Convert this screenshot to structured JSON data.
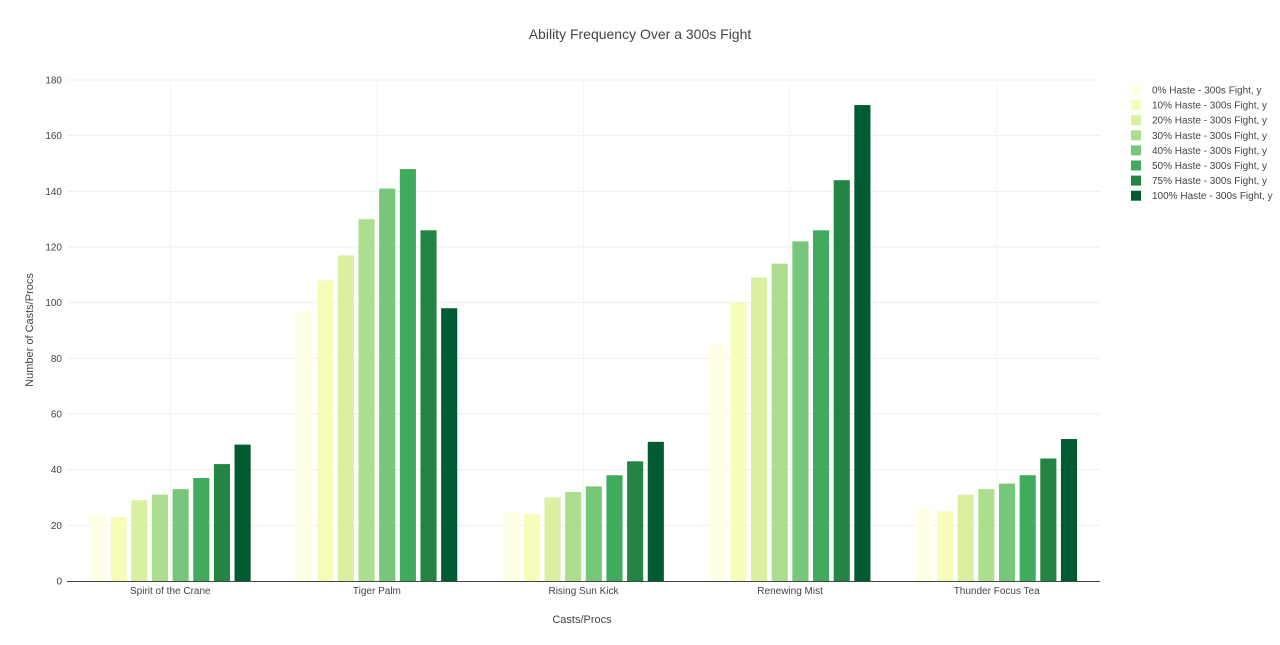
{
  "chart_data": {
    "type": "bar",
    "title": "Ability Frequency Over a 300s Fight",
    "xlabel": "Casts/Procs",
    "ylabel": "Number of Casts/Procs",
    "ylim": [
      0,
      180
    ],
    "yticks": [
      0,
      20,
      40,
      60,
      80,
      100,
      120,
      140,
      160,
      180
    ],
    "grid": true,
    "legend_position": "top-right",
    "categories": [
      "Spirit of the Crane",
      "Tiger Palm",
      "Rising Sun Kick",
      "Renewing Mist",
      "Thunder Focus Tea"
    ],
    "series": [
      {
        "name": "0% Haste - 300s Fight, y",
        "color": "#ffffe5",
        "values": [
          24,
          97,
          25,
          85,
          26
        ]
      },
      {
        "name": "10% Haste - 300s Fight, y",
        "color": "#f7fcb9",
        "values": [
          23,
          108,
          24,
          100,
          25
        ]
      },
      {
        "name": "20% Haste - 300s Fight, y",
        "color": "#d9f0a3",
        "values": [
          29,
          117,
          30,
          109,
          31
        ]
      },
      {
        "name": "30% Haste - 300s Fight, y",
        "color": "#addd8e",
        "values": [
          31,
          130,
          32,
          114,
          33
        ]
      },
      {
        "name": "40% Haste - 300s Fight, y",
        "color": "#78c679",
        "values": [
          33,
          141,
          34,
          122,
          35
        ]
      },
      {
        "name": "50% Haste - 300s Fight, y",
        "color": "#41ab5d",
        "values": [
          37,
          148,
          38,
          126,
          38
        ]
      },
      {
        "name": "75% Haste - 300s Fight, y",
        "color": "#238443",
        "values": [
          42,
          126,
          43,
          144,
          44
        ]
      },
      {
        "name": "100% Haste - 300s Fight, y",
        "color": "#005a32",
        "values": [
          49,
          98,
          50,
          171,
          51
        ]
      }
    ]
  }
}
